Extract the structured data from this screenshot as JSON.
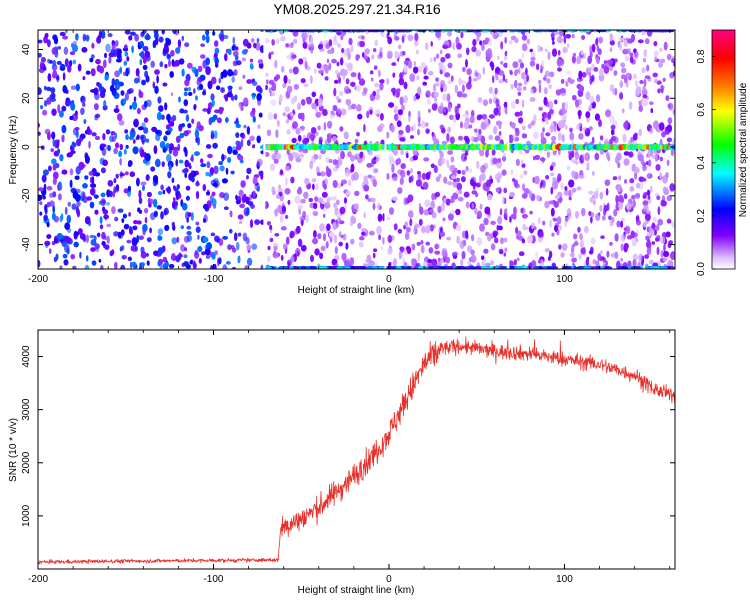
{
  "chart_data": [
    {
      "type": "heatmap",
      "title": "YM08.2025.297.21.34.R16",
      "xlabel": "Height of straight line (km)",
      "ylabel": "Frequency (Hz)",
      "xlim": [
        -200,
        163
      ],
      "ylim": [
        -50,
        48
      ],
      "xticks": [
        -200,
        -100,
        0,
        100
      ],
      "xtick_labels": [
        "-200",
        "-100",
        "0",
        "100"
      ],
      "yticks": [
        -40,
        -20,
        0,
        20,
        40
      ],
      "ytick_labels": [
        "-40",
        "-20",
        "0",
        "20",
        "40"
      ],
      "signal_line": {
        "frequency_hz": 0,
        "x_start_km": -72,
        "x_end_km": 163
      },
      "gaps_km": [
        -71,
        -2,
        68
      ],
      "colorbar": {
        "label": "Normalized spectral amplitude",
        "range": [
          0.0,
          0.9
        ],
        "ticks": [
          0.0,
          0.2,
          0.4,
          0.6,
          0.8
        ],
        "tick_labels": [
          "0.0",
          "0.2",
          "0.4",
          "0.6",
          "0.8"
        ],
        "colors": [
          "#ffffff",
          "#8000ff",
          "#0000ff",
          "#00ffff",
          "#00ff00",
          "#ffff00",
          "#ff8000",
          "#ff0000",
          "#ff0080"
        ]
      }
    },
    {
      "type": "line",
      "xlabel": "Height of straight line (km)",
      "ylabel": "SNR (10 * v/v)",
      "xlim": [
        -200,
        163
      ],
      "ylim": [
        0,
        4500
      ],
      "xticks": [
        -200,
        -100,
        0,
        100
      ],
      "xtick_labels": [
        "-200",
        "-100",
        "0",
        "100"
      ],
      "yticks": [
        1000,
        2000,
        3000,
        4000
      ],
      "ytick_labels": [
        "1000",
        "2000",
        "3000",
        "4000"
      ],
      "color": "#e8302a",
      "x": [
        -200,
        -150,
        -100,
        -63,
        -62,
        -50,
        -40,
        -30,
        -20,
        -10,
        0,
        10,
        20,
        30,
        40,
        60,
        80,
        100,
        120,
        140,
        150,
        163
      ],
      "y": [
        130,
        150,
        160,
        170,
        750,
        950,
        1150,
        1450,
        1750,
        2100,
        2550,
        3200,
        3850,
        4150,
        4200,
        4100,
        4050,
        3950,
        3850,
        3650,
        3400,
        3250
      ]
    }
  ]
}
